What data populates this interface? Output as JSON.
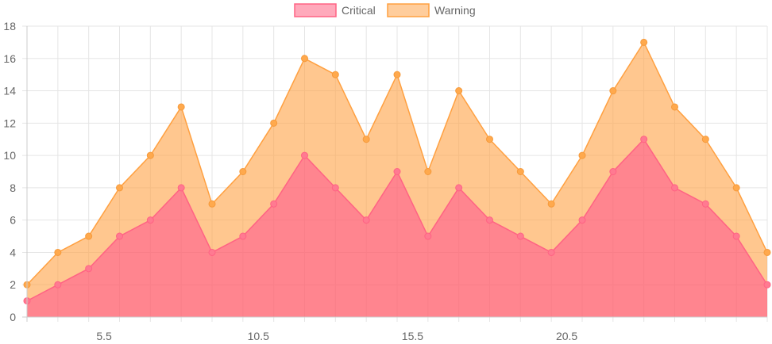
{
  "chart_data": {
    "type": "area",
    "stacked": true,
    "legend_position": "top",
    "grid": true,
    "x": [
      3,
      4,
      5,
      6,
      7,
      8,
      9,
      10,
      11,
      12,
      13,
      14,
      15,
      16,
      17,
      18,
      19,
      20,
      21,
      22,
      23,
      24,
      25,
      26,
      27
    ],
    "x_tick_labels": [
      "5.5",
      "10.5",
      "15.5",
      "20.5"
    ],
    "x_tick_values": [
      5.5,
      10.5,
      15.5,
      20.5
    ],
    "ylim": [
      0,
      18
    ],
    "y_ticks": [
      0,
      2,
      4,
      6,
      8,
      10,
      12,
      14,
      16,
      18
    ],
    "series": [
      {
        "name": "Critical",
        "color": "#ff6b7e",
        "fill": "rgba(255,99,112,0.78)",
        "border": "#ff6384",
        "values": [
          1,
          2,
          3,
          5,
          6,
          8,
          4,
          5,
          7,
          10,
          8,
          6,
          9,
          5,
          8,
          6,
          5,
          4,
          6,
          9,
          11,
          8,
          7,
          5,
          2
        ]
      },
      {
        "name": "Warning",
        "color": "#ffa040",
        "fill": "rgba(255,164,74,0.62)",
        "border": "#ffa040",
        "values": [
          1,
          2,
          2,
          3,
          4,
          5,
          3,
          4,
          5,
          6,
          7,
          5,
          6,
          4,
          6,
          5,
          4,
          3,
          4,
          5,
          6,
          5,
          4,
          3,
          2
        ]
      }
    ]
  }
}
